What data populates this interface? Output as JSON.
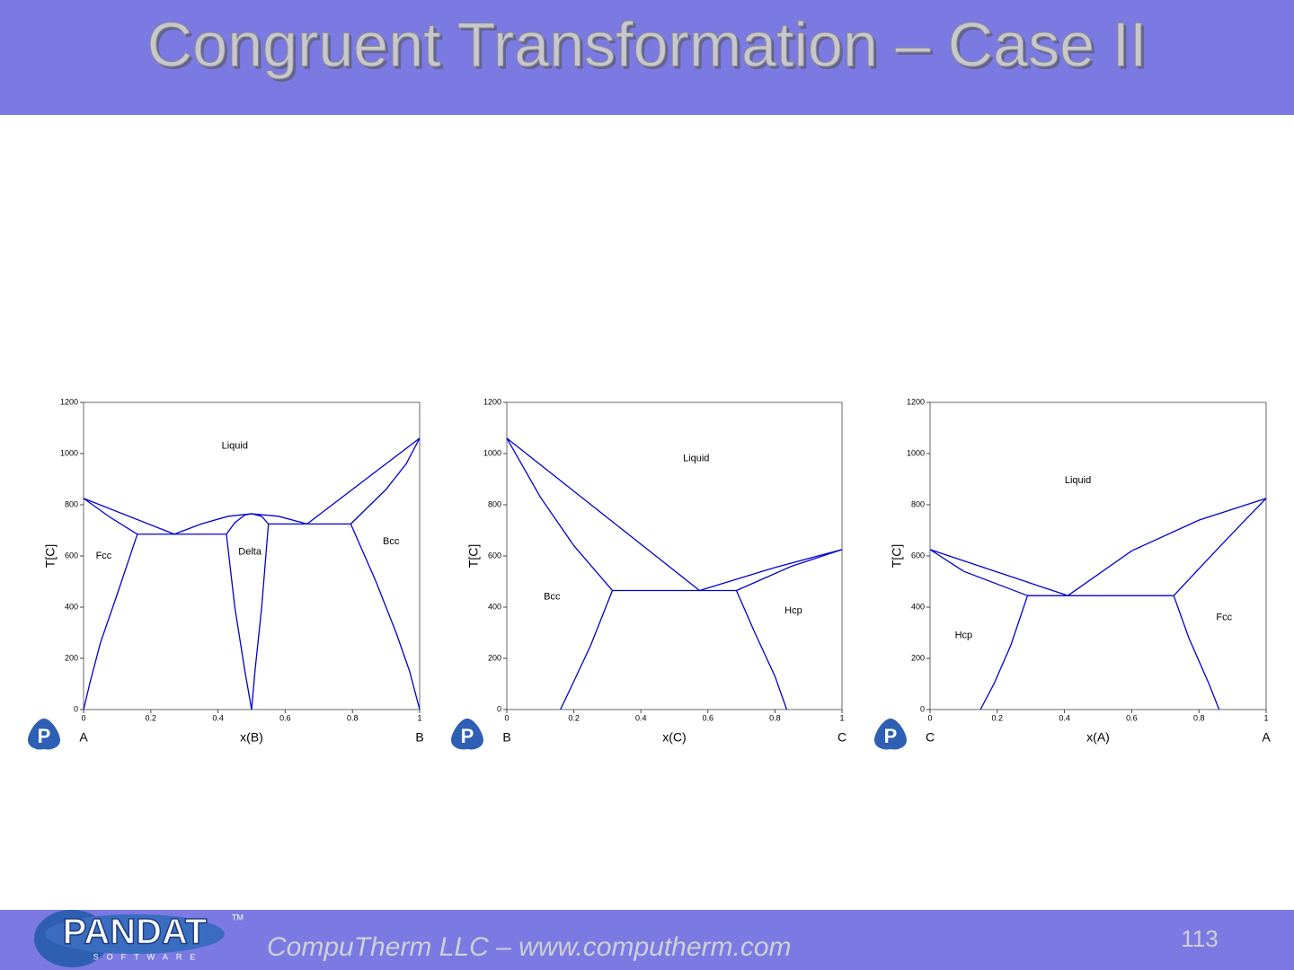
{
  "slide": {
    "title": "Congruent Transformation – Case II",
    "footer": "CompuTherm LLC – www.computherm.com",
    "page_number": "113",
    "logo": "PANDAT",
    "logo_sub": "SOFTWARE",
    "logo_tm": "TM",
    "icon_letter": "P"
  },
  "chart_data": [
    {
      "type": "line",
      "color": "#0000d0",
      "xlim": [
        0,
        1
      ],
      "ylim": [
        0,
        1200
      ],
      "xticks": [
        0,
        0.2,
        0.4,
        0.6,
        0.8,
        1
      ],
      "yticks": [
        0,
        200,
        400,
        600,
        800,
        1000,
        1200
      ],
      "x_label": "x(B)",
      "y_label": "T[C]",
      "left_component": "A",
      "right_component": "B",
      "annotations": [
        {
          "text": "Liquid",
          "x": 0.45,
          "y": 1030
        },
        {
          "text": "Fcc",
          "x": 0.06,
          "y": 600
        },
        {
          "text": "Delta",
          "x": 0.495,
          "y": 615
        },
        {
          "text": "Bcc",
          "x": 0.915,
          "y": 655
        }
      ],
      "series": [
        {
          "x": [
            0,
            0.27
          ],
          "values": [
            825,
            685
          ]
        },
        {
          "x": [
            0,
            0.08,
            0.16
          ],
          "values": [
            825,
            750,
            685
          ]
        },
        {
          "x": [
            0.16,
            0.425
          ],
          "values": [
            685,
            685
          ]
        },
        {
          "x": [
            0.16,
            0.1,
            0.05,
            0.02,
            0
          ],
          "values": [
            685,
            450,
            260,
            110,
            0
          ]
        },
        {
          "x": [
            0.27,
            0.35,
            0.43,
            0.5,
            0.58,
            0.665
          ],
          "values": [
            685,
            725,
            755,
            765,
            755,
            725
          ]
        },
        {
          "x": [
            0.425,
            0.45,
            0.48,
            0.5,
            0.53,
            0.55
          ],
          "values": [
            685,
            730,
            760,
            765,
            755,
            725
          ]
        },
        {
          "x": [
            0.55,
            0.795
          ],
          "values": [
            725,
            725
          ]
        },
        {
          "x": [
            0.665,
            0.8,
            0.9,
            1
          ],
          "values": [
            725,
            860,
            960,
            1060
          ]
        },
        {
          "x": [
            0.795,
            0.9,
            0.96,
            1
          ],
          "values": [
            725,
            860,
            960,
            1060
          ]
        },
        {
          "x": [
            0.425,
            0.45,
            0.48,
            0.5
          ],
          "values": [
            685,
            400,
            150,
            0
          ]
        },
        {
          "x": [
            0.55,
            0.53,
            0.51,
            0.5
          ],
          "values": [
            725,
            400,
            150,
            0
          ]
        },
        {
          "x": [
            0.795,
            0.87,
            0.93,
            0.97,
            1
          ],
          "values": [
            725,
            500,
            300,
            150,
            0
          ]
        }
      ]
    },
    {
      "type": "line",
      "color": "#0000d0",
      "xlim": [
        0,
        1
      ],
      "ylim": [
        0,
        1200
      ],
      "xticks": [
        0,
        0.2,
        0.4,
        0.6,
        0.8,
        1
      ],
      "yticks": [
        0,
        200,
        400,
        600,
        800,
        1000,
        1200
      ],
      "x_label": "x(C)",
      "y_label": "T[C]",
      "left_component": "B",
      "right_component": "C",
      "annotations": [
        {
          "text": "Liquid",
          "x": 0.565,
          "y": 980
        },
        {
          "text": "Bcc",
          "x": 0.135,
          "y": 440
        },
        {
          "text": "Hcp",
          "x": 0.855,
          "y": 385
        }
      ],
      "series": [
        {
          "x": [
            0,
            0.575
          ],
          "values": [
            1060,
            465
          ]
        },
        {
          "x": [
            0,
            0.1,
            0.2,
            0.315
          ],
          "values": [
            1060,
            830,
            640,
            465
          ]
        },
        {
          "x": [
            0.315,
            0.685
          ],
          "values": [
            465,
            465
          ]
        },
        {
          "x": [
            0.575,
            0.8,
            1
          ],
          "values": [
            465,
            555,
            625
          ]
        },
        {
          "x": [
            0.685,
            0.85,
            1
          ],
          "values": [
            465,
            560,
            625
          ]
        },
        {
          "x": [
            0.315,
            0.25,
            0.2,
            0.16
          ],
          "values": [
            465,
            250,
            110,
            0
          ]
        },
        {
          "x": [
            0.685,
            0.74,
            0.8,
            0.835
          ],
          "values": [
            465,
            300,
            130,
            0
          ]
        }
      ]
    },
    {
      "type": "line",
      "color": "#0000d0",
      "xlim": [
        0,
        1
      ],
      "ylim": [
        0,
        1200
      ],
      "xticks": [
        0,
        0.2,
        0.4,
        0.6,
        0.8,
        1
      ],
      "yticks": [
        0,
        200,
        400,
        600,
        800,
        1000,
        1200
      ],
      "x_label": "x(A)",
      "y_label": "T[C]",
      "left_component": "C",
      "right_component": "A",
      "annotations": [
        {
          "text": "Liquid",
          "x": 0.44,
          "y": 895
        },
        {
          "text": "Hcp",
          "x": 0.1,
          "y": 290
        },
        {
          "text": "Fcc",
          "x": 0.875,
          "y": 360
        }
      ],
      "series": [
        {
          "x": [
            0,
            0.41
          ],
          "values": [
            625,
            445
          ]
        },
        {
          "x": [
            0,
            0.1,
            0.29
          ],
          "values": [
            625,
            540,
            445
          ]
        },
        {
          "x": [
            0.29,
            0.725
          ],
          "values": [
            445,
            445
          ]
        },
        {
          "x": [
            0.41,
            0.6,
            0.8,
            1
          ],
          "values": [
            445,
            620,
            740,
            825
          ]
        },
        {
          "x": [
            0.725,
            0.85,
            0.93,
            1
          ],
          "values": [
            445,
            620,
            730,
            825
          ]
        },
        {
          "x": [
            0.29,
            0.24,
            0.19,
            0.15
          ],
          "values": [
            445,
            250,
            100,
            0
          ]
        },
        {
          "x": [
            0.725,
            0.77,
            0.83,
            0.86
          ],
          "values": [
            445,
            280,
            100,
            0
          ]
        }
      ]
    }
  ]
}
